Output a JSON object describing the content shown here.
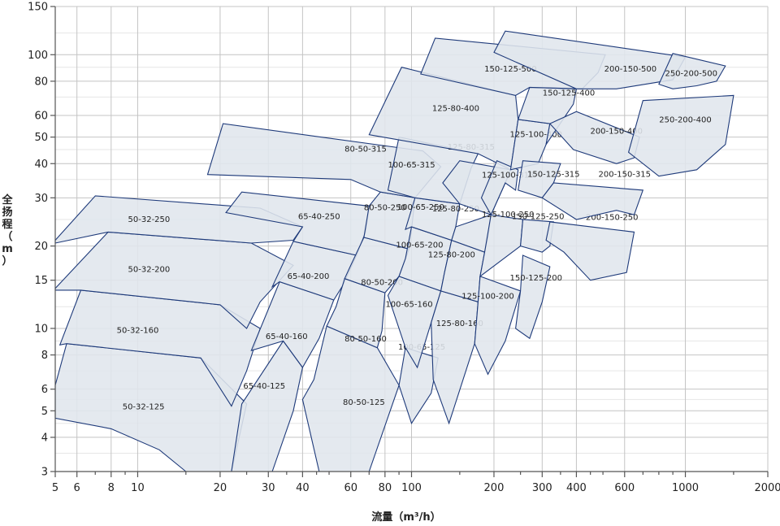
{
  "chart_data": {
    "type": "scatter",
    "title": "",
    "xlabel": "流量（m³/h）",
    "ylabel": "全扬程（m）",
    "xscale": "log",
    "yscale": "log",
    "xlim": [
      5,
      2000
    ],
    "ylim": [
      3,
      150
    ],
    "grid": true,
    "x_ticks": [
      5,
      6,
      8,
      10,
      20,
      30,
      40,
      60,
      80,
      100,
      200,
      300,
      400,
      600,
      1000,
      2000
    ],
    "y_ticks": [
      3,
      4,
      5,
      6,
      8,
      10,
      15,
      20,
      30,
      40,
      50,
      60,
      80,
      100,
      150
    ],
    "regions": [
      {
        "name": "50-32-125",
        "label_at": [
          10.5,
          5.2
        ],
        "polygon": [
          [
            5,
            6.2
          ],
          [
            5.5,
            8.8
          ],
          [
            17,
            7.8
          ],
          [
            25,
            5.3
          ],
          [
            22,
            3
          ],
          [
            15,
            3
          ],
          [
            12,
            3.6
          ],
          [
            8,
            4.3
          ],
          [
            5,
            4.7
          ]
        ]
      },
      {
        "name": "50-32-160",
        "label_at": [
          10,
          9.9
        ],
        "polygon": [
          [
            5.2,
            8.7
          ],
          [
            6.2,
            13.8
          ],
          [
            20,
            12.2
          ],
          [
            28,
            10
          ],
          [
            25,
            7
          ],
          [
            22,
            5.2
          ],
          [
            17,
            7.8
          ],
          [
            5.5,
            8.8
          ]
        ]
      },
      {
        "name": "50-32-200",
        "label_at": [
          11,
          16.5
        ],
        "polygon": [
          [
            5,
            14
          ],
          [
            7.8,
            22.5
          ],
          [
            26,
            20.5
          ],
          [
            37,
            17
          ],
          [
            28,
            12.5
          ],
          [
            25,
            10
          ],
          [
            20,
            12.2
          ],
          [
            6.2,
            13.8
          ],
          [
            5,
            13.8
          ]
        ]
      },
      {
        "name": "50-32-250",
        "label_at": [
          11,
          25.2
        ],
        "polygon": [
          [
            5,
            21
          ],
          [
            7,
            30.5
          ],
          [
            28,
            27.5
          ],
          [
            40,
            23.5
          ],
          [
            37,
            21
          ],
          [
            26,
            20.5
          ],
          [
            7.8,
            22.5
          ],
          [
            5,
            20.5
          ]
        ]
      },
      {
        "name": "65-40-125",
        "label_at": [
          29,
          6.2
        ],
        "polygon": [
          [
            24,
            5.3
          ],
          [
            34,
            9
          ],
          [
            40,
            7.2
          ],
          [
            37,
            5
          ],
          [
            31,
            3
          ],
          [
            22,
            3
          ]
        ]
      },
      {
        "name": "65-40-160",
        "label_at": [
          35,
          9.4
        ],
        "polygon": [
          [
            26,
            8.3
          ],
          [
            33,
            14.8
          ],
          [
            52,
            12.7
          ],
          [
            46,
            9.2
          ],
          [
            40,
            7.2
          ],
          [
            34,
            9
          ]
        ]
      },
      {
        "name": "65-40-200",
        "label_at": [
          42,
          15.6
        ],
        "polygon": [
          [
            31,
            14.2
          ],
          [
            37,
            20.8
          ],
          [
            63,
            18.5
          ],
          [
            56,
            14.3
          ],
          [
            52,
            12.7
          ],
          [
            33,
            14.8
          ]
        ]
      },
      {
        "name": "65-40-250",
        "label_at": [
          46,
          25.8
        ],
        "polygon": [
          [
            21,
            26.5
          ],
          [
            24,
            31.5
          ],
          [
            70,
            28
          ],
          [
            68,
            22.5
          ],
          [
            63,
            18.5
          ],
          [
            37,
            20.8
          ],
          [
            40,
            23.5
          ]
        ]
      },
      {
        "name": "80-50-125",
        "label_at": [
          67,
          5.4
        ],
        "polygon": [
          [
            44,
            6.5
          ],
          [
            49,
            10.2
          ],
          [
            75,
            8.5
          ],
          [
            90,
            6.2
          ],
          [
            70,
            3
          ],
          [
            46,
            3
          ],
          [
            40,
            5.5
          ]
        ]
      },
      {
        "name": "80-50-160",
        "label_at": [
          68,
          9.2
        ],
        "polygon": [
          [
            53,
            12
          ],
          [
            57,
            15.2
          ],
          [
            80,
            13.5
          ],
          [
            78,
            9.8
          ],
          [
            75,
            8.5
          ],
          [
            49,
            10.2
          ]
        ]
      },
      {
        "name": "80-50-200",
        "label_at": [
          78,
          14.8
        ],
        "polygon": [
          [
            60,
            17
          ],
          [
            67,
            21.5
          ],
          [
            98,
            19.5
          ],
          [
            90,
            15.5
          ],
          [
            80,
            13.5
          ],
          [
            57,
            15.2
          ]
        ]
      },
      {
        "name": "80-50-250",
        "label_at": [
          80,
          27.8
        ],
        "polygon": [
          [
            70,
            28
          ],
          [
            77,
            31.5
          ],
          [
            103,
            30
          ],
          [
            100,
            23
          ],
          [
            98,
            19.5
          ],
          [
            67,
            21.5
          ]
        ]
      },
      {
        "name": "80-50-315",
        "label_at": [
          68,
          45.5
        ],
        "polygon": [
          [
            18,
            36.5
          ],
          [
            20.5,
            56
          ],
          [
            110,
            44.5
          ],
          [
            128,
            39
          ],
          [
            103,
            30
          ],
          [
            77,
            31.5
          ],
          [
            60,
            35
          ]
        ]
      },
      {
        "name": "100-65-125",
        "label_at": [
          109,
          8.6
        ],
        "polygon": [
          [
            90,
            6.2
          ],
          [
            95,
            8.5
          ],
          [
            125,
            7.8
          ],
          [
            118,
            5.8
          ],
          [
            100,
            4.5
          ]
        ]
      },
      {
        "name": "100-65-160",
        "label_at": [
          98,
          12.3
        ],
        "polygon": [
          [
            82,
            13.2
          ],
          [
            90,
            15.5
          ],
          [
            128,
            13.7
          ],
          [
            118,
            10.5
          ],
          [
            105,
            7.2
          ],
          [
            95,
            8.5
          ]
        ]
      },
      {
        "name": "100-65-200",
        "label_at": [
          107,
          20.3
        ],
        "polygon": [
          [
            95,
            18
          ],
          [
            100,
            23.5
          ],
          [
            140,
            21
          ],
          [
            132,
            16
          ],
          [
            128,
            13.7
          ],
          [
            90,
            15.5
          ]
        ]
      },
      {
        "name": "100-65-250",
        "label_at": [
          108,
          27.9
        ],
        "polygon": [
          [
            95,
            23
          ],
          [
            103,
            30
          ],
          [
            150,
            28.5
          ],
          [
            145,
            23.5
          ],
          [
            140,
            21
          ],
          [
            100,
            23.5
          ]
        ]
      },
      {
        "name": "100-65-315",
        "label_at": [
          100,
          39.8
        ],
        "polygon": [
          [
            82,
            32
          ],
          [
            90,
            50
          ],
          [
            175,
            43.5
          ],
          [
            165,
            38.5
          ],
          [
            150,
            28.5
          ],
          [
            103,
            30
          ]
        ]
      },
      {
        "name": "125-80-160",
        "label_at": [
          150,
          10.5
        ],
        "polygon": [
          [
            118,
            10.5
          ],
          [
            128,
            13.7
          ],
          [
            175,
            12.5
          ],
          [
            170,
            8.8
          ],
          [
            137,
            4.5
          ],
          [
            120,
            6.5
          ]
        ]
      },
      {
        "name": "125-80-200",
        "label_at": [
          140,
          18.7
        ],
        "polygon": [
          [
            132,
            16
          ],
          [
            140,
            21
          ],
          [
            185,
            19
          ],
          [
            178,
            15.5
          ],
          [
            175,
            12.5
          ],
          [
            128,
            13.7
          ]
        ]
      },
      {
        "name": "125-80-250",
        "label_at": [
          145,
          27.5
        ],
        "polygon": [
          [
            140,
            21
          ],
          [
            145,
            23.5
          ],
          [
            195,
            26
          ],
          [
            190,
            21.5
          ],
          [
            185,
            19
          ],
          [
            140,
            21
          ]
        ]
      },
      {
        "name": "125-80-315",
        "label_at": [
          165,
          46.2
        ],
        "polygon": [
          [
            130,
            34
          ],
          [
            150,
            41
          ],
          [
            230,
            38
          ],
          [
            220,
            34
          ],
          [
            195,
            26
          ],
          [
            150,
            28.5
          ]
        ]
      },
      {
        "name": "125-80-400",
        "label_at": [
          145,
          64
        ],
        "polygon": [
          [
            70,
            51
          ],
          [
            92,
            90
          ],
          [
            240,
            71
          ],
          [
            245,
            58
          ],
          [
            230,
            38
          ],
          [
            175,
            43.5
          ]
        ]
      },
      {
        "name": "125-100-200",
        "label_at": [
          190,
          13.2
        ],
        "polygon": [
          [
            175,
            12.5
          ],
          [
            178,
            15.5
          ],
          [
            250,
            13.7
          ],
          [
            220,
            9
          ],
          [
            190,
            6.8
          ],
          [
            170,
            8.8
          ]
        ]
      },
      {
        "name": "125-100-250",
        "label_at": [
          225,
          26.2
        ],
        "polygon": [
          [
            185,
            19
          ],
          [
            195,
            26
          ],
          [
            255,
            25
          ],
          [
            250,
            20
          ],
          [
            178,
            15.5
          ]
        ]
      },
      {
        "name": "125-100-315",
        "label_at": [
          225,
          36.5
        ],
        "polygon": [
          [
            180,
            30
          ],
          [
            205,
            41
          ],
          [
            245,
            38
          ],
          [
            240,
            32
          ],
          [
            220,
            34
          ],
          [
            195,
            26
          ]
        ]
      },
      {
        "name": "125-100-400",
        "label_at": [
          285,
          51.5
        ],
        "polygon": [
          [
            230,
            38
          ],
          [
            245,
            58
          ],
          [
            320,
            56
          ],
          [
            310,
            47
          ],
          [
            290,
            40
          ]
        ]
      },
      {
        "name": "150-125-200",
        "label_at": [
          285,
          15.4
        ],
        "polygon": [
          [
            250,
            13.7
          ],
          [
            255,
            18.5
          ],
          [
            320,
            16.8
          ],
          [
            300,
            12.5
          ],
          [
            270,
            9.2
          ],
          [
            240,
            10
          ]
        ]
      },
      {
        "name": "150-125-250",
        "label_at": [
          290,
          25.8
        ],
        "polygon": [
          [
            250,
            20
          ],
          [
            255,
            25
          ],
          [
            330,
            24.5
          ],
          [
            320,
            20
          ],
          [
            300,
            19
          ]
        ]
      },
      {
        "name": "150-125-315",
        "label_at": [
          330,
          36.8
        ],
        "polygon": [
          [
            245,
            32
          ],
          [
            255,
            41
          ],
          [
            350,
            40
          ],
          [
            330,
            34
          ],
          [
            300,
            30
          ]
        ]
      },
      {
        "name": "150-125-400",
        "label_at": [
          375,
          72.8
        ],
        "polygon": [
          [
            245,
            58
          ],
          [
            270,
            76
          ],
          [
            400,
            75
          ],
          [
            390,
            66
          ],
          [
            310,
            47
          ],
          [
            320,
            56
          ]
        ]
      },
      {
        "name": "150-125-500",
        "label_at": [
          230,
          89.2
        ],
        "polygon": [
          [
            108,
            85
          ],
          [
            122,
            115
          ],
          [
            510,
            100
          ],
          [
            480,
            86
          ],
          [
            420,
            75
          ],
          [
            270,
            76
          ],
          [
            240,
            71
          ]
        ]
      },
      {
        "name": "200-150-250",
        "label_at": [
          540,
          25.6
        ],
        "polygon": [
          [
            310,
            21
          ],
          [
            320,
            24.5
          ],
          [
            650,
            22.5
          ],
          [
            610,
            16
          ],
          [
            450,
            15
          ],
          [
            360,
            19
          ]
        ]
      },
      {
        "name": "200-150-315",
        "label_at": [
          600,
          36.8
        ],
        "polygon": [
          [
            300,
            30
          ],
          [
            330,
            34
          ],
          [
            700,
            32
          ],
          [
            650,
            26
          ],
          [
            560,
            27
          ],
          [
            400,
            25
          ]
        ]
      },
      {
        "name": "200-150-400",
        "label_at": [
          560,
          52.8
        ],
        "polygon": [
          [
            320,
            56
          ],
          [
            400,
            62
          ],
          [
            680,
            50
          ],
          [
            650,
            42
          ],
          [
            560,
            40
          ],
          [
            390,
            45
          ]
        ]
      },
      {
        "name": "200-150-500",
        "label_at": [
          630,
          89.2
        ],
        "polygon": [
          [
            200,
            102
          ],
          [
            220,
            122
          ],
          [
            1000,
            98
          ],
          [
            900,
            81
          ],
          [
            560,
            75
          ],
          [
            400,
            75
          ]
        ]
      },
      {
        "name": "250-200-400",
        "label_at": [
          1000,
          58.2
        ],
        "polygon": [
          [
            620,
            44
          ],
          [
            700,
            68
          ],
          [
            1500,
            71
          ],
          [
            1400,
            47
          ],
          [
            1100,
            38
          ],
          [
            800,
            36
          ]
        ]
      },
      {
        "name": "250-200-500",
        "label_at": [
          1050,
          85.8
        ],
        "polygon": [
          [
            800,
            78
          ],
          [
            900,
            101
          ],
          [
            1400,
            91
          ],
          [
            1300,
            80
          ],
          [
            1100,
            77
          ],
          [
            900,
            75
          ]
        ]
      }
    ]
  }
}
